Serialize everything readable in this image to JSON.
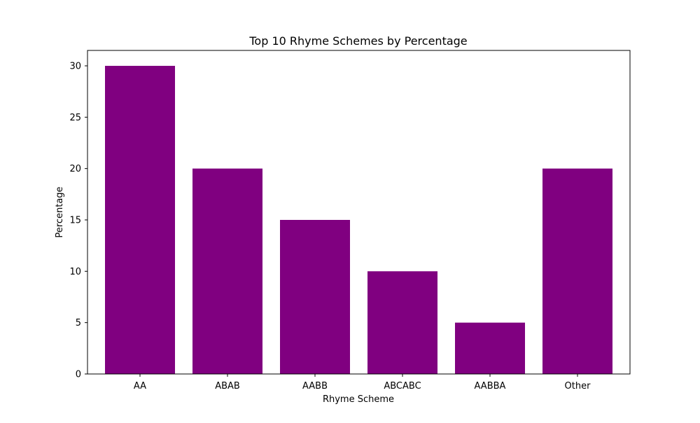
{
  "chart_data": {
    "type": "bar",
    "title": "Top 10 Rhyme Schemes by Percentage",
    "xlabel": "Rhyme Scheme",
    "ylabel": "Percentage",
    "categories": [
      "AA",
      "ABAB",
      "AABB",
      "ABCABC",
      "AABBA",
      "Other"
    ],
    "values": [
      30,
      20,
      15,
      10,
      5,
      20
    ],
    "ylim": [
      0,
      31.5
    ],
    "yticks": [
      0,
      5,
      10,
      15,
      20,
      25,
      30
    ],
    "bar_color": "#800080",
    "grid": false,
    "legend": "none"
  }
}
